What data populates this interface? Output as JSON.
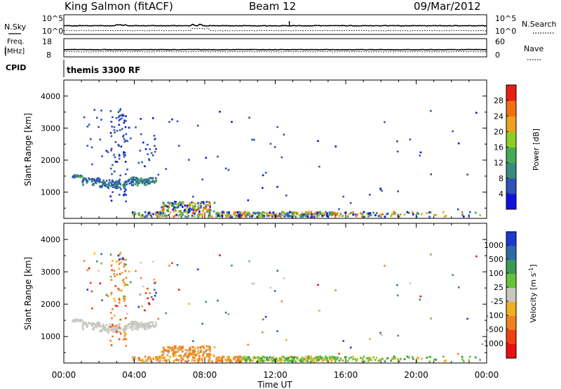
{
  "header": {
    "station": "King Salmon (fitACF)",
    "beam": "Beam 12",
    "date": "09/Mar/2012"
  },
  "top_panels": {
    "nsky_label": "N.Sky",
    "nsearch_label": "N.Search",
    "freq_label": "Freq.",
    "freq_unit": "[MHz]",
    "nave_label": "Nave",
    "cpid_label": "CPID",
    "cpid_value": "themis 3300 RF",
    "noise_ticks_left": [
      "10^5",
      "10^0"
    ],
    "noise_ticks_right": [
      "10^5",
      "10^0"
    ],
    "freq_ticks": [
      "18",
      "8"
    ],
    "nave_ticks": [
      "60",
      "0"
    ]
  },
  "chart_data": [
    {
      "type": "heatmap",
      "title": "Power [dB]",
      "xlabel": "Time UT",
      "ylabel": "Slant Range [km]",
      "xlim": [
        0,
        24
      ],
      "ylim": [
        180,
        4500
      ],
      "x_ticks": [
        "00:00",
        "04:00",
        "08:00",
        "12:00",
        "16:00",
        "20:00",
        "00:00"
      ],
      "y_ticks": [
        1000,
        2000,
        3000,
        4000
      ],
      "colorbar_label": "Power [dB]",
      "colorbar_ticks": [
        "4",
        "8",
        "12",
        "16",
        "20",
        "24",
        "28"
      ],
      "colors": [
        "#1010e0",
        "#2d52b8",
        "#3a8a7e",
        "#44aa55",
        "#8fcc2a",
        "#f0a020",
        "#f07010",
        "#e82010"
      ]
    },
    {
      "type": "heatmap",
      "title": "Velocity [m s^-1]",
      "xlabel": "Time UT",
      "ylabel": "Slant Range [km]",
      "xlim": [
        0,
        24
      ],
      "ylim": [
        180,
        4500
      ],
      "x_ticks": [
        "00:00",
        "04:00",
        "08:00",
        "12:00",
        "16:00",
        "20:00",
        "00:00"
      ],
      "y_ticks": [
        1000,
        2000,
        3000,
        4000
      ],
      "colorbar_label": "Velocity [m s",
      "colorbar_label_sup": "-1",
      "colorbar_label_end": "]",
      "colorbar_ticks": [
        "1000",
        "500",
        "100",
        "25",
        "-25",
        "-100",
        "-500",
        "-1000"
      ],
      "colors": [
        "#1a3ad0",
        "#2e6aa8",
        "#3a9a56",
        "#66c23a",
        "#c8c8c0",
        "#f0b020",
        "#f08020",
        "#f04010",
        "#e81010"
      ]
    }
  ]
}
